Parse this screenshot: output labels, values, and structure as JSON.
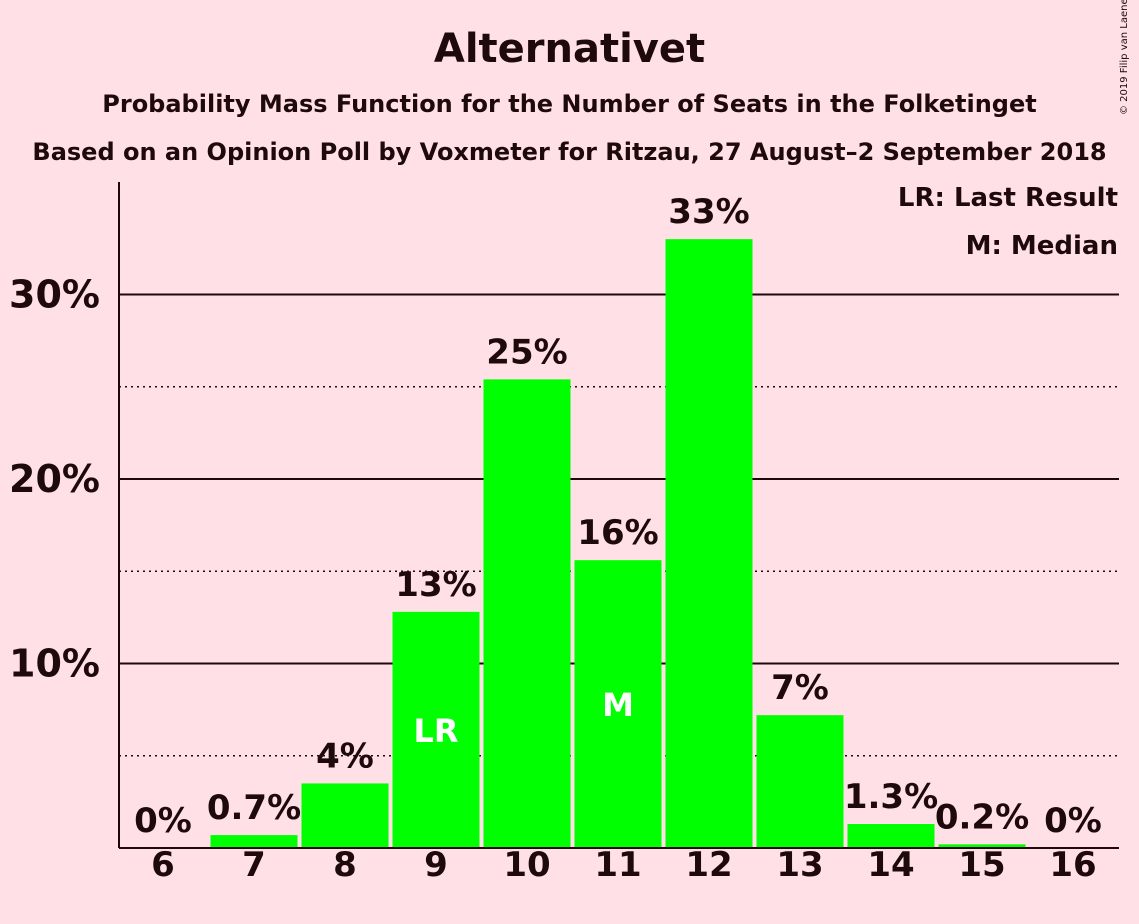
{
  "title": "Alternativet",
  "subtitle": "Probability Mass Function for the Number of Seats in the Folketinget",
  "subtitle2": "Based on an Opinion Poll by Voxmeter for Ritzau, 27 August–2 September 2018",
  "copyright": "© 2019 Filip van Laenen",
  "legend": {
    "last_result": "LR: Last Result",
    "median": "M: Median"
  },
  "colors": {
    "bar": "#00ff00",
    "background": "#ffe0e6",
    "text": "#1e0a0a"
  },
  "chart_data": {
    "type": "bar",
    "categories": [
      "6",
      "7",
      "8",
      "9",
      "10",
      "11",
      "12",
      "13",
      "14",
      "15",
      "16"
    ],
    "values": [
      0,
      0.7,
      3.5,
      12.8,
      25.4,
      15.6,
      33.0,
      7.2,
      1.3,
      0.2,
      0
    ],
    "value_labels": [
      "0%",
      "0.7%",
      "4%",
      "13%",
      "25%",
      "16%",
      "33%",
      "7%",
      "1.3%",
      "0.2%",
      "0%"
    ],
    "bar_markers": {
      "9": "LR",
      "11": "M"
    },
    "ylim": [
      0,
      36
    ],
    "yticks": [
      10,
      20,
      30
    ],
    "ytick_labels": [
      "10%",
      "20%",
      "30%"
    ],
    "minor_gridlines": [
      5,
      15,
      25
    ],
    "grid": true
  }
}
